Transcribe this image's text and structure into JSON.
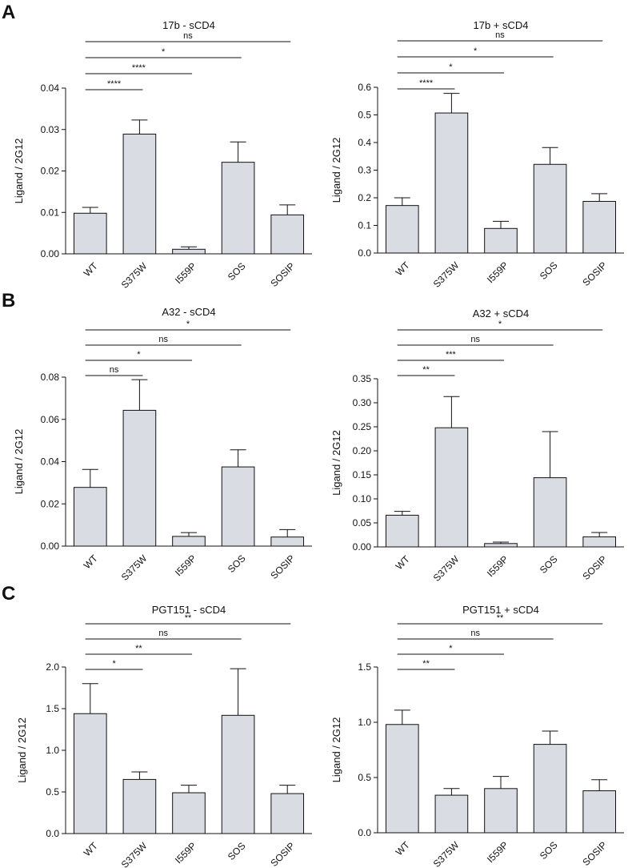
{
  "panels": [
    {
      "letter": "A"
    },
    {
      "letter": "B"
    },
    {
      "letter": "C"
    }
  ],
  "colors": {
    "bar_fill": "#d9dce3",
    "stroke": "#111111"
  },
  "chart_data": [
    {
      "type": "bar",
      "title": "17b - sCD4",
      "ylabel": "Ligand / 2G12",
      "categories": [
        "WT",
        "S375W",
        "I559P",
        "SOS",
        "SOSIP"
      ],
      "values": [
        0.0098,
        0.0289,
        0.0011,
        0.0221,
        0.0094
      ],
      "errors": [
        0.0014,
        0.0034,
        0.0006,
        0.0049,
        0.0024
      ],
      "ylim": [
        0,
        0.04
      ],
      "yticks": [
        0,
        0.01,
        0.02,
        0.03,
        0.04
      ],
      "ytick_labels": [
        "0.00",
        "0.01",
        "0.02",
        "0.03",
        "0.04"
      ],
      "comparisons": [
        {
          "to": "S375W",
          "label": "****"
        },
        {
          "to": "I559P",
          "label": "****"
        },
        {
          "to": "SOS",
          "label": "*"
        },
        {
          "to": "SOSIP",
          "label": "ns"
        }
      ]
    },
    {
      "type": "bar",
      "title": "17b + sCD4",
      "ylabel": "Ligand / 2G12",
      "categories": [
        "WT",
        "S375W",
        "I559P",
        "SOS",
        "SOSIP"
      ],
      "values": [
        0.172,
        0.507,
        0.089,
        0.321,
        0.187
      ],
      "errors": [
        0.028,
        0.071,
        0.026,
        0.061,
        0.028
      ],
      "ylim": [
        0,
        0.6
      ],
      "yticks": [
        0,
        0.1,
        0.2,
        0.3,
        0.4,
        0.5,
        0.6
      ],
      "ytick_labels": [
        "0.0",
        "0.1",
        "0.2",
        "0.3",
        "0.4",
        "0.5",
        "0.6"
      ],
      "comparisons": [
        {
          "to": "S375W",
          "label": "****"
        },
        {
          "to": "I559P",
          "label": "*"
        },
        {
          "to": "SOS",
          "label": "*"
        },
        {
          "to": "SOSIP",
          "label": "ns"
        }
      ]
    },
    {
      "type": "bar",
      "title": "A32 - sCD4",
      "ylabel": "Ligand / 2G12",
      "categories": [
        "WT",
        "S375W",
        "I559P",
        "SOS",
        "SOSIP"
      ],
      "values": [
        0.0278,
        0.0643,
        0.0046,
        0.0375,
        0.0043
      ],
      "errors": [
        0.0085,
        0.0145,
        0.0018,
        0.0081,
        0.0035
      ],
      "ylim": [
        0,
        0.08
      ],
      "yticks": [
        0,
        0.02,
        0.04,
        0.06,
        0.08
      ],
      "ytick_labels": [
        "0.00",
        "0.02",
        "0.04",
        "0.06",
        "0.08"
      ],
      "comparisons": [
        {
          "to": "S375W",
          "label": "ns"
        },
        {
          "to": "I559P",
          "label": "*"
        },
        {
          "to": "SOS",
          "label": "ns"
        },
        {
          "to": "SOSIP",
          "label": "*"
        }
      ]
    },
    {
      "type": "bar",
      "title": "A32 + sCD4",
      "ylabel": "Ligand / 2G12",
      "categories": [
        "WT",
        "S375W",
        "I559P",
        "SOS",
        "SOSIP"
      ],
      "values": [
        0.066,
        0.248,
        0.007,
        0.144,
        0.021
      ],
      "errors": [
        0.008,
        0.065,
        0.003,
        0.096,
        0.009
      ],
      "ylim": [
        0,
        0.35
      ],
      "yticks": [
        0,
        0.05,
        0.1,
        0.15,
        0.2,
        0.25,
        0.3,
        0.35
      ],
      "ytick_labels": [
        "0.00",
        "0.05",
        "0.10",
        "0.15",
        "0.20",
        "0.25",
        "0.30",
        "0.35"
      ],
      "comparisons": [
        {
          "to": "S375W",
          "label": "**"
        },
        {
          "to": "I559P",
          "label": "***"
        },
        {
          "to": "SOS",
          "label": "ns"
        },
        {
          "to": "SOSIP",
          "label": "*"
        }
      ]
    },
    {
      "type": "bar",
      "title": "PGT151 - sCD4",
      "ylabel": "Ligand / 2G12",
      "categories": [
        "WT",
        "S375W",
        "I559P",
        "SOS",
        "SOSIP"
      ],
      "values": [
        1.44,
        0.65,
        0.49,
        1.42,
        0.48
      ],
      "errors": [
        0.36,
        0.09,
        0.09,
        0.56,
        0.1
      ],
      "ylim": [
        0,
        2.0
      ],
      "yticks": [
        0,
        0.5,
        1.0,
        1.5,
        2.0
      ],
      "ytick_labels": [
        "0.0",
        "0.5",
        "1.0",
        "1.5",
        "2.0"
      ],
      "comparisons": [
        {
          "to": "S375W",
          "label": "*"
        },
        {
          "to": "I559P",
          "label": "**"
        },
        {
          "to": "SOS",
          "label": "ns"
        },
        {
          "to": "SOSIP",
          "label": "**"
        }
      ]
    },
    {
      "type": "bar",
      "title": "PGT151 + sCD4",
      "ylabel": "Ligand / 2G12",
      "categories": [
        "WT",
        "S375W",
        "I559P",
        "SOS",
        "SOSIP"
      ],
      "values": [
        0.98,
        0.34,
        0.4,
        0.8,
        0.38
      ],
      "errors": [
        0.13,
        0.06,
        0.11,
        0.12,
        0.1
      ],
      "ylim": [
        0,
        1.5
      ],
      "yticks": [
        0,
        0.5,
        1.0,
        1.5
      ],
      "ytick_labels": [
        "0.0",
        "0.5",
        "1.0",
        "1.5"
      ],
      "comparisons": [
        {
          "to": "S375W",
          "label": "**"
        },
        {
          "to": "I559P",
          "label": "*"
        },
        {
          "to": "SOS",
          "label": "ns"
        },
        {
          "to": "SOSIP",
          "label": "**"
        }
      ]
    }
  ]
}
